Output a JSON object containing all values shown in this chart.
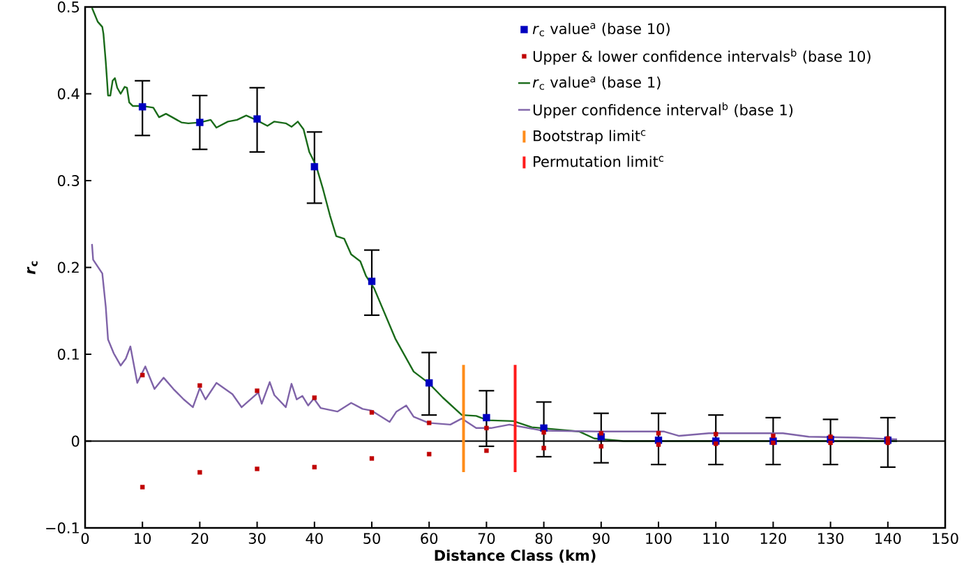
{
  "chart_data": {
    "type": "scatter",
    "xlabel": "Distance Class (km)",
    "ylabel": "*r*$_{c}$",
    "xlim": [
      0,
      150
    ],
    "ylim": [
      -0.1,
      0.5
    ],
    "xticks": [
      0,
      10,
      20,
      30,
      40,
      50,
      60,
      70,
      80,
      90,
      100,
      110,
      120,
      130,
      140,
      150
    ],
    "yticks": [
      {
        "value": -0.1,
        "label": "−0.1"
      },
      0,
      0.1,
      0.2,
      0.3,
      0.4,
      0.5
    ],
    "legend": "top right",
    "marker": "none",
    "series": [
      {
        "name": "*r*$_{c}$  value$^{a}$ (base 10)",
        "marker": "square",
        "color": "#0000c0",
        "x": [
          10,
          20,
          30,
          40,
          50,
          60,
          70,
          80,
          90,
          100,
          110,
          120,
          130,
          140
        ],
        "values": [
          0.385,
          0.367,
          0.371,
          0.316,
          0.184,
          0.067,
          0.027,
          0.015,
          0.005,
          0.001,
          0,
          0,
          0.002,
          0.001
        ],
        "errors": [
          [
            0.352,
            0.415
          ],
          [
            0.336,
            0.398
          ],
          [
            0.333,
            0.407
          ],
          [
            0.274,
            0.356
          ],
          [
            0.145,
            0.22
          ],
          [
            0.03,
            0.102
          ],
          [
            -0.006,
            0.058
          ],
          [
            -0.018,
            0.045
          ],
          [
            -0.025,
            0.032
          ],
          [
            -0.027,
            0.032
          ],
          [
            -0.027,
            0.03
          ],
          [
            -0.027,
            0.027
          ],
          [
            -0.027,
            0.025
          ],
          [
            -0.03,
            0.027
          ]
        ]
      },
      {
        "name": "Upper & lower confidence intervals$^{b}$ (base 10)",
        "marker": "square",
        "color": "#c00000",
        "x": [
          10,
          10,
          20,
          20,
          30,
          30,
          40,
          40,
          50,
          50,
          60,
          60,
          70,
          70,
          80,
          80,
          90,
          90,
          100,
          100,
          110,
          110,
          120,
          120,
          130,
          130,
          140,
          140
        ],
        "values": [
          0.076,
          -0.053,
          0.064,
          -0.036,
          0.058,
          -0.032,
          0.05,
          -0.03,
          0.033,
          -0.02,
          0.021,
          -0.015,
          0.015,
          -0.011,
          0.01,
          -0.008,
          0.009,
          -0.006,
          0.009,
          -0.004,
          0.008,
          -0.003,
          0.006,
          -0.002,
          0.005,
          -0.002,
          0.003,
          -0.002
        ]
      },
      {
        "name": "*r*$_{c}$  value$^{a}$ (base 1)",
        "type": "line",
        "color": "#1a6b1a",
        "x": [
          1.2,
          2.2,
          3.0,
          3.2,
          3.6,
          3.8,
          4.0,
          4.4,
          4.8,
          5.2,
          5.6,
          6.2,
          6.9,
          7.3,
          7.7,
          8.3,
          9.9,
          11.9,
          12.9,
          14.1,
          15.2,
          16.8,
          18.0,
          20.0,
          21.9,
          22.9,
          24.9,
          26.5,
          28.1,
          29.8,
          31.8,
          33.0,
          35.0,
          36.0,
          37.1,
          38.1,
          39.1,
          40.3,
          41.5,
          42.7,
          43.8,
          45.2,
          46.4,
          48.0,
          49.0,
          50.4,
          54.1,
          57.3,
          59.9,
          62.4,
          65.7,
          68.2,
          70.2,
          74.7,
          77.9,
          86.2,
          88.8,
          93.9,
          141.6
        ],
        "values": [
          0.499,
          0.483,
          0.477,
          0.469,
          0.437,
          0.418,
          0.398,
          0.398,
          0.415,
          0.418,
          0.407,
          0.4,
          0.408,
          0.407,
          0.39,
          0.386,
          0.386,
          0.384,
          0.373,
          0.377,
          0.373,
          0.367,
          0.366,
          0.367,
          0.37,
          0.361,
          0.368,
          0.37,
          0.375,
          0.37,
          0.363,
          0.368,
          0.366,
          0.362,
          0.368,
          0.359,
          0.333,
          0.317,
          0.29,
          0.26,
          0.236,
          0.233,
          0.215,
          0.207,
          0.19,
          0.176,
          0.118,
          0.08,
          0.067,
          0.05,
          0.03,
          0.029,
          0.024,
          0.023,
          0.016,
          0.011,
          0.003,
          0,
          0
        ]
      },
      {
        "name": "Upper confidence interval$^{b}$ (base 1)",
        "type": "line",
        "color": "#7f63a8",
        "x": [
          1.2,
          1.4,
          3.0,
          3.6,
          4.0,
          5.0,
          6.2,
          7.1,
          7.9,
          8.3,
          9.1,
          10.5,
          12.1,
          13.7,
          15.4,
          17.2,
          18.8,
          20.0,
          21.0,
          22.9,
          25.7,
          27.3,
          30.2,
          30.8,
          32.2,
          33.0,
          35.0,
          36.0,
          36.9,
          37.9,
          38.9,
          39.9,
          41.1,
          44.0,
          46.4,
          48.4,
          50.0,
          53.1,
          54.3,
          56.0,
          57.3,
          59.9,
          63.7,
          65.7,
          68.2,
          70.8,
          74.0,
          79.8,
          89.4,
          101.0,
          103.6,
          108.8,
          115.2,
          121.7,
          126.2,
          134.5,
          141.6
        ],
        "values": [
          0.227,
          0.209,
          0.193,
          0.155,
          0.117,
          0.101,
          0.087,
          0.095,
          0.109,
          0.095,
          0.067,
          0.086,
          0.06,
          0.073,
          0.06,
          0.048,
          0.039,
          0.061,
          0.048,
          0.067,
          0.054,
          0.039,
          0.056,
          0.043,
          0.068,
          0.053,
          0.039,
          0.066,
          0.048,
          0.052,
          0.041,
          0.049,
          0.038,
          0.034,
          0.044,
          0.037,
          0.035,
          0.022,
          0.034,
          0.041,
          0.028,
          0.021,
          0.019,
          0.026,
          0.015,
          0.015,
          0.019,
          0.012,
          0.011,
          0.011,
          0.006,
          0.009,
          0.009,
          0.009,
          0.005,
          0.004,
          0.002
        ]
      }
    ],
    "ref_lines": [
      {
        "axis": "y",
        "value": 0,
        "color": "#000000"
      },
      {
        "axis": "x",
        "value": 66,
        "label": "Bootstrap limit$^{c}$",
        "color": "#ff8c1a"
      },
      {
        "axis": "x",
        "value": 75,
        "label": "Permutation limit$^{c}$",
        "color": "#ff1a1a"
      }
    ]
  }
}
